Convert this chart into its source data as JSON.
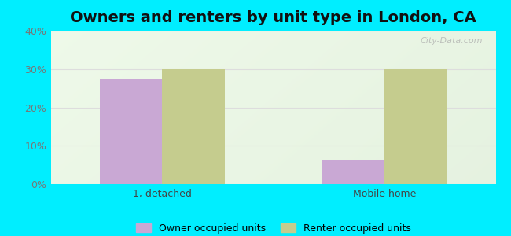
{
  "title": "Owners and renters by unit type in London, CA",
  "categories": [
    "1, detached",
    "Mobile home"
  ],
  "owner_values": [
    27.5,
    6.25
  ],
  "renter_values": [
    29.9,
    29.9
  ],
  "owner_color": "#c9a8d4",
  "renter_color": "#c5cc8e",
  "owner_label": "Owner occupied units",
  "renter_label": "Renter occupied units",
  "ylim": [
    0,
    40
  ],
  "yticks": [
    0,
    10,
    20,
    30,
    40
  ],
  "ytick_labels": [
    "0%",
    "10%",
    "20%",
    "30%",
    "40%"
  ],
  "outer_background": "#00eeff",
  "grid_color": "#dddddd",
  "bar_width": 0.28,
  "title_fontsize": 14,
  "watermark": "City-Data.com",
  "tick_color": "#777777"
}
